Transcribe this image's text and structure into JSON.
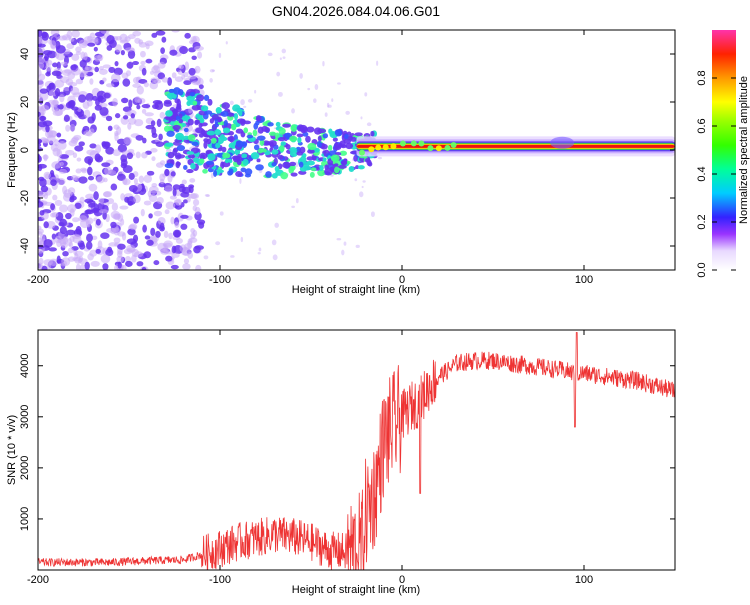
{
  "title": "GN04.2026.084.04.06.G01",
  "colors": {
    "line": "#ee3333",
    "spec_purple": "#6633ee",
    "spec_light": "#c8aaf8"
  },
  "chart_data": [
    {
      "type": "heatmap",
      "name": "spectrogram",
      "title": "GN04.2026.084.04.06.G01",
      "xlabel": "Height of straight line (km)",
      "ylabel": "Frequency (Hz)",
      "xlim": [
        -200,
        150
      ],
      "ylim": [
        -50,
        50
      ],
      "xticks": [
        -200,
        -100,
        0,
        100
      ],
      "yticks": [
        -40,
        -20,
        0,
        20,
        40
      ],
      "colorbar": {
        "label": "Normalized spectral amplitude",
        "range": [
          0.0,
          1.0
        ],
        "ticks": [
          0.0,
          0.2,
          0.4,
          0.6,
          0.8
        ]
      },
      "ridge": [
        {
          "x": -120,
          "y": 8
        },
        {
          "x": -100,
          "y": 5
        },
        {
          "x": -80,
          "y": 2
        },
        {
          "x": -60,
          "y": 0
        },
        {
          "x": -40,
          "y": -1
        },
        {
          "x": -20,
          "y": 0
        },
        {
          "x": 0,
          "y": 2
        },
        {
          "x": 50,
          "y": 1
        },
        {
          "x": 100,
          "y": 1
        },
        {
          "x": 150,
          "y": 1
        }
      ]
    },
    {
      "type": "line",
      "name": "snr",
      "xlabel": "Height of straight line (km)",
      "ylabel": "SNR (10 * v/v)",
      "xlim": [
        -200,
        150
      ],
      "ylim": [
        0,
        4700
      ],
      "xticks": [
        -200,
        -100,
        0,
        100
      ],
      "yticks": [
        1000,
        2000,
        3000,
        4000
      ],
      "series": [
        {
          "name": "SNR",
          "x": [
            -200,
            -180,
            -160,
            -140,
            -120,
            -110,
            -100,
            -90,
            -80,
            -70,
            -60,
            -50,
            -40,
            -30,
            -22,
            -20,
            -15,
            -10,
            -5,
            0,
            5,
            10,
            15,
            20,
            25,
            30,
            40,
            50,
            60,
            70,
            80,
            90,
            95,
            100,
            110,
            120,
            130,
            140,
            150
          ],
          "y": [
            150,
            150,
            150,
            180,
            200,
            300,
            420,
            550,
            620,
            700,
            650,
            550,
            380,
            350,
            450,
            1100,
            1500,
            2500,
            2800,
            3000,
            3200,
            3300,
            3600,
            3800,
            3900,
            4050,
            4100,
            4100,
            4050,
            4000,
            3950,
            3900,
            3850,
            3850,
            3800,
            3750,
            3700,
            3600,
            3500
          ]
        }
      ]
    }
  ]
}
